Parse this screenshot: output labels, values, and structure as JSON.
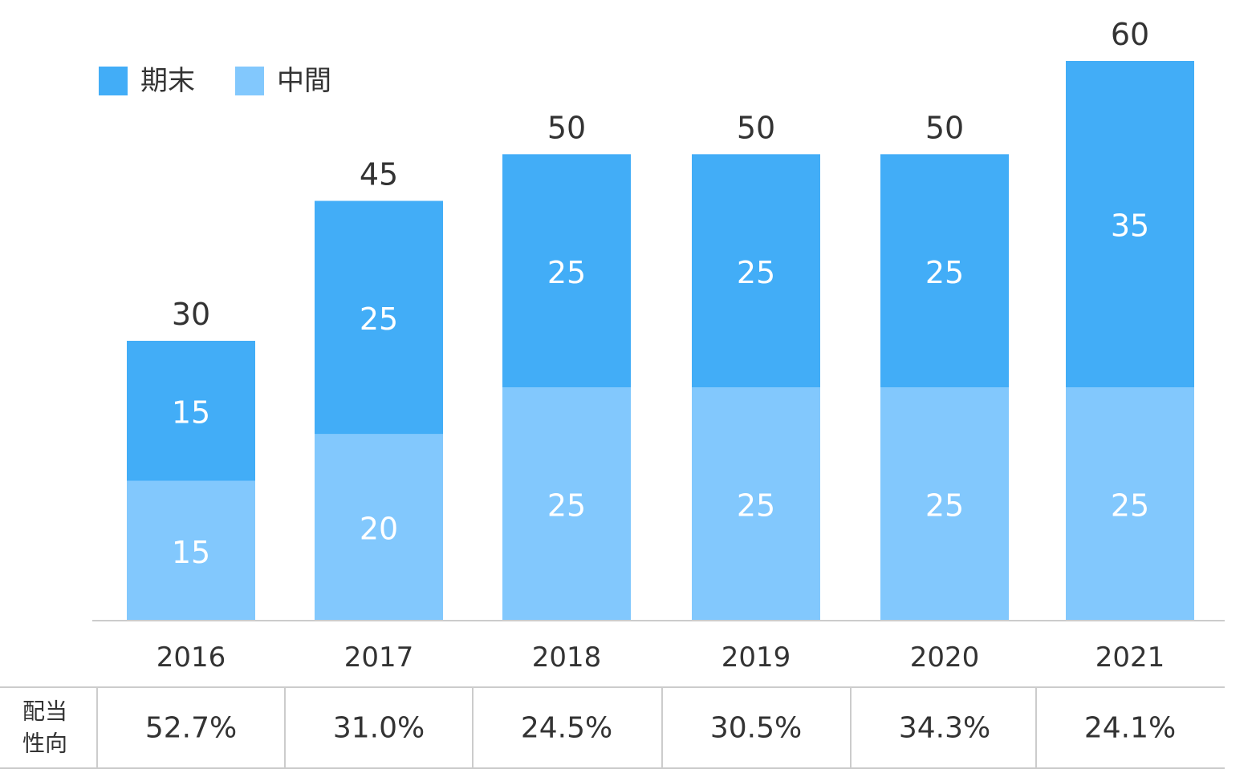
{
  "chart_data": {
    "type": "bar",
    "stacked": true,
    "categories": [
      "2016",
      "2017",
      "2018",
      "2019",
      "2020",
      "2021"
    ],
    "series": [
      {
        "name": "中間",
        "values": [
          15,
          20,
          25,
          25,
          25,
          25
        ],
        "color": "#82c8fd"
      },
      {
        "name": "期末",
        "values": [
          15,
          25,
          25,
          25,
          25,
          35
        ],
        "color": "#42adf7"
      }
    ],
    "totals": [
      30,
      45,
      50,
      50,
      50,
      60
    ],
    "ylim": [
      0,
      60
    ],
    "grid": false,
    "legend": "top-left",
    "title": "",
    "xlabel": "",
    "ylabel": "",
    "colors": {
      "total_label": "#333333",
      "segment_label": "#ffffff",
      "axis": "#cccccc",
      "text": "#333333"
    }
  },
  "payout_table": {
    "header": "配当性向",
    "header_lines": [
      "配当",
      "性向"
    ],
    "values": [
      "52.7%",
      "31.0%",
      "24.5%",
      "30.5%",
      "34.3%",
      "24.1%"
    ]
  }
}
